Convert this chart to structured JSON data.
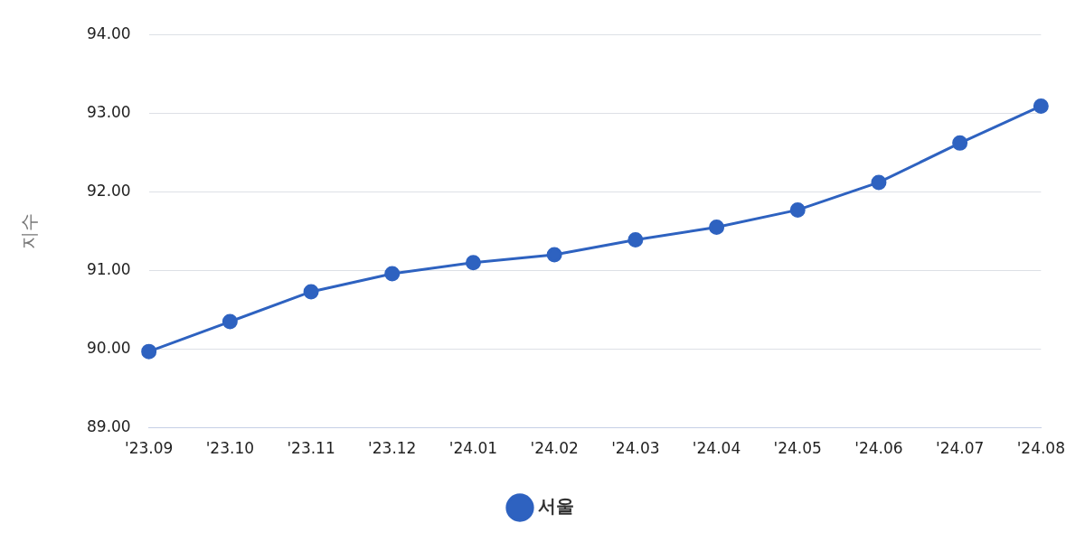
{
  "chart_data": {
    "type": "line",
    "ylabel": "지수",
    "categories": [
      "'23.09",
      "'23.10",
      "'23.11",
      "'23.12",
      "'24.01",
      "'24.02",
      "'24.03",
      "'24.04",
      "'24.05",
      "'24.06",
      "'24.07",
      "'24.08"
    ],
    "series": [
      {
        "name": "서울",
        "color": "#2e62c0",
        "values": [
          89.97,
          90.35,
          90.73,
          90.96,
          91.1,
          91.2,
          91.39,
          91.55,
          91.77,
          92.12,
          92.62,
          93.09
        ]
      }
    ],
    "ylim": [
      89,
      94
    ],
    "yticks": [
      {
        "value": 89,
        "label": "89.00"
      },
      {
        "value": 90,
        "label": "90.00"
      },
      {
        "value": 91,
        "label": "91.00"
      },
      {
        "value": 92,
        "label": "92.00"
      },
      {
        "value": 93,
        "label": "93.00"
      },
      {
        "value": 94,
        "label": "94.00"
      }
    ],
    "grid": "y",
    "legend": "bottom",
    "marker": "circle",
    "line_style": "solid"
  }
}
